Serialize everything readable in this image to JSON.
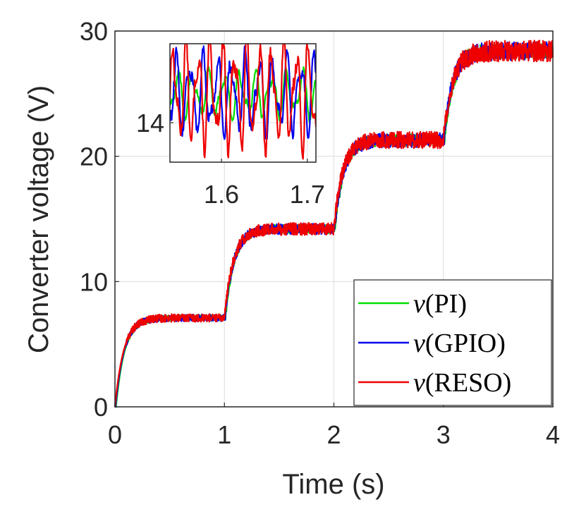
{
  "chart_data": {
    "type": "line",
    "title": "",
    "xlabel": "Time (s)",
    "ylabel": "Converter voltage (V)",
    "xlim": [
      0,
      4
    ],
    "ylim": [
      0,
      30
    ],
    "xticks": [
      0,
      1,
      2,
      3,
      4
    ],
    "yticks": [
      0,
      10,
      20,
      30
    ],
    "xtick_labels": [
      "0",
      "1",
      "2",
      "3",
      "4"
    ],
    "ytick_labels": [
      "0",
      "10",
      "20",
      "30"
    ],
    "grid": true,
    "legend_position": "bottom-right",
    "step_times": [
      0,
      1,
      2,
      3
    ],
    "step_levels": [
      7.1,
      14.2,
      21.3,
      28.4
    ],
    "time_constant_s": 0.08,
    "series": [
      {
        "name": "v(PI)",
        "legend_var": "v",
        "legend_arg": "(PI)",
        "color": "#00e000",
        "noise_amplitude": 0.25
      },
      {
        "name": "v(GPIO)",
        "legend_var": "v",
        "legend_arg": "(GPIO)",
        "color": "#0000ee",
        "noise_amplitude": 0.3
      },
      {
        "name": "v(RESO)",
        "legend_var": "v",
        "legend_arg": "(RESO)",
        "color": "#ee0000",
        "noise_amplitude": 0.35
      }
    ],
    "inset": {
      "xlim": [
        1.54,
        1.71
      ],
      "ylim": [
        13.7,
        14.6
      ],
      "xticks": [
        1.6,
        1.7
      ],
      "xtick_labels": [
        "1.6",
        "1.7"
      ],
      "yticks": [
        14
      ],
      "ytick_labels": [
        "14"
      ],
      "grid": true
    }
  }
}
